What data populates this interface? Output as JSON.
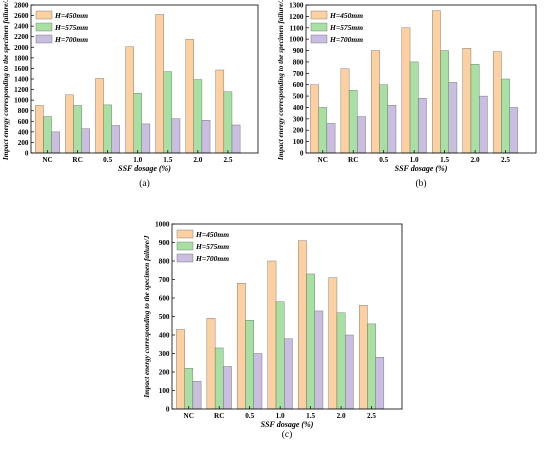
{
  "colors": {
    "h450": "#FDD0A2",
    "h575": "#A8E0A4",
    "h700": "#C9BDE0",
    "edge": "#555555"
  },
  "chart_data": [
    {
      "type": "bar",
      "panel_label": "(a)",
      "categories": [
        "NC",
        "RC",
        "0.5",
        "1.0",
        "1.5",
        "2.0",
        "2.5"
      ],
      "series": [
        {
          "name": "H=450mm",
          "values": [
            900,
            1100,
            1410,
            2010,
            2620,
            2150,
            1570
          ]
        },
        {
          "name": "H=575mm",
          "values": [
            690,
            900,
            910,
            1130,
            1540,
            1390,
            1160
          ]
        },
        {
          "name": "H=700mm",
          "values": [
            400,
            460,
            520,
            550,
            650,
            620,
            530
          ]
        }
      ],
      "xlabel": "SSF dosage (%)",
      "ylabel": "Impact energy corresponding to the specimen failure/J",
      "ylim": [
        0,
        2800
      ],
      "yticks": [
        "0",
        "200",
        "400",
        "600",
        "800",
        "1000",
        "1200",
        "1400",
        "1600",
        "1800",
        "2000",
        "2200",
        "2400",
        "2600",
        "2800"
      ],
      "legend": "top-left",
      "grid": false
    },
    {
      "type": "bar",
      "panel_label": "(b)",
      "categories": [
        "NC",
        "RC",
        "0.5",
        "1.0",
        "1.5",
        "2.0",
        "2.5"
      ],
      "series": [
        {
          "name": "H=450mm",
          "values": [
            600,
            740,
            900,
            1100,
            1250,
            920,
            890
          ]
        },
        {
          "name": "H=575mm",
          "values": [
            400,
            550,
            600,
            800,
            900,
            780,
            650
          ]
        },
        {
          "name": "H=700mm",
          "values": [
            260,
            320,
            420,
            480,
            620,
            500,
            400
          ]
        }
      ],
      "xlabel": "SSF dosage (%)",
      "ylabel": "Impact energy corresponding to the specimen failure/J",
      "ylim": [
        0,
        1300
      ],
      "yticks": [
        "0",
        "100",
        "200",
        "300",
        "400",
        "500",
        "600",
        "700",
        "800",
        "900",
        "1000",
        "1100",
        "1200",
        "1300"
      ],
      "legend": "top-left",
      "grid": false
    },
    {
      "type": "bar",
      "panel_label": "(c)",
      "categories": [
        "NC",
        "RC",
        "0.5",
        "1.0",
        "1.5",
        "2.0",
        "2.5"
      ],
      "series": [
        {
          "name": "H=450mm",
          "values": [
            430,
            490,
            680,
            800,
            910,
            710,
            560
          ]
        },
        {
          "name": "H=575mm",
          "values": [
            220,
            330,
            480,
            580,
            730,
            520,
            460
          ]
        },
        {
          "name": "H=700mm",
          "values": [
            150,
            230,
            300,
            380,
            530,
            400,
            280
          ]
        }
      ],
      "xlabel": "SSF dosage (%)",
      "ylabel": "Impact energy corresponding to the specimen failure/J",
      "ylim": [
        0,
        1000
      ],
      "yticks": [
        "0",
        "100",
        "200",
        "300",
        "400",
        "500",
        "600",
        "700",
        "800",
        "900",
        "1000"
      ],
      "legend": "top-left",
      "grid": false
    }
  ]
}
